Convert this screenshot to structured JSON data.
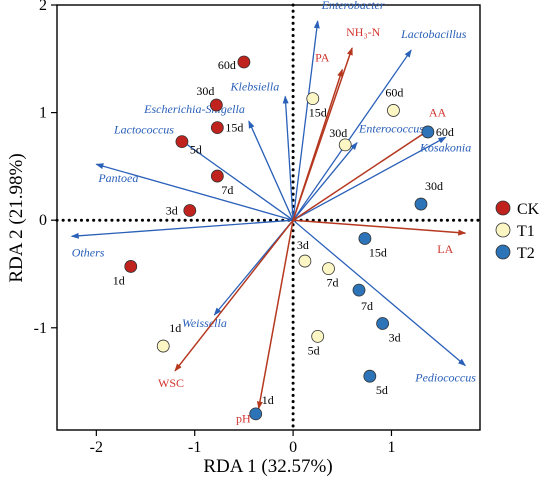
{
  "chart_data": {
    "type": "scatter",
    "title": "",
    "xlabel": "RDA 1 (32.57%)",
    "ylabel": "RDA 2 (21.98%)",
    "xlim": [
      -2.4,
      1.9
    ],
    "ylim": [
      -1.95,
      2.0
    ],
    "xticks": [
      -2,
      -1,
      0,
      1
    ],
    "yticks": [
      -1,
      0,
      1,
      2
    ],
    "colors": {
      "env_arrow": "#b5381f",
      "species_arrow": "#2a60b8",
      "CK": "#c0221e",
      "T1": "#fbf6c4",
      "T2": "#2c73b8",
      "zero_line": "#000000"
    },
    "legend": {
      "placement": "right",
      "entries": [
        {
          "name": "CK",
          "color": "#c0221e"
        },
        {
          "name": "T1",
          "color": "#fbf6c4"
        },
        {
          "name": "T2",
          "color": "#2c73b8"
        }
      ]
    },
    "env_vectors": [
      {
        "name": "NH₃-N",
        "x": 0.6,
        "y": 1.6
      },
      {
        "name": "PA",
        "x": 0.5,
        "y": 1.4
      },
      {
        "name": "AA",
        "x": 1.4,
        "y": 0.85
      },
      {
        "name": "LA",
        "x": 1.75,
        "y": -0.12
      },
      {
        "name": "WSC",
        "x": -1.2,
        "y": -1.4
      },
      {
        "name": "pH",
        "x": -0.35,
        "y": -1.75
      }
    ],
    "species_vectors": [
      {
        "name": "Enterobacter",
        "x": 0.25,
        "y": 1.85
      },
      {
        "name": "Lactobacillus",
        "x": 1.2,
        "y": 1.58
      },
      {
        "name": "Klebsiella",
        "x": -0.08,
        "y": 1.15
      },
      {
        "name": "Escherichia-Shigella",
        "x": -0.45,
        "y": 0.92
      },
      {
        "name": "Lactococcus",
        "x": -1.15,
        "y": 0.75
      },
      {
        "name": "Enterococcus",
        "x": 0.65,
        "y": 0.72
      },
      {
        "name": "Kosakonia",
        "x": 1.55,
        "y": 0.77
      },
      {
        "name": "Pantoea",
        "x": -2.0,
        "y": 0.52
      },
      {
        "name": "Others",
        "x": -2.25,
        "y": -0.15
      },
      {
        "name": "Weissella",
        "x": -0.8,
        "y": -0.88
      },
      {
        "name": "Pediococcus",
        "x": 1.75,
        "y": -1.35
      }
    ],
    "series": [
      {
        "name": "CK",
        "points": [
          {
            "label": "60d",
            "x": -0.5,
            "y": 1.47
          },
          {
            "label": "30d",
            "x": -0.78,
            "y": 1.07
          },
          {
            "label": "15d",
            "x": -0.77,
            "y": 0.86
          },
          {
            "label": "5d",
            "x": -1.13,
            "y": 0.73
          },
          {
            "label": "7d",
            "x": -0.77,
            "y": 0.41
          },
          {
            "label": "3d",
            "x": -1.05,
            "y": 0.09
          },
          {
            "label": "1d",
            "x": -1.65,
            "y": -0.43
          }
        ]
      },
      {
        "name": "T1",
        "points": [
          {
            "label": "15d",
            "x": 0.2,
            "y": 1.13
          },
          {
            "label": "60d",
            "x": 1.02,
            "y": 1.02
          },
          {
            "label": "30d",
            "x": 0.53,
            "y": 0.7
          },
          {
            "label": "3d",
            "x": 0.12,
            "y": -0.38
          },
          {
            "label": "7d",
            "x": 0.36,
            "y": -0.45
          },
          {
            "label": "5d",
            "x": 0.25,
            "y": -1.08
          },
          {
            "label": "1d",
            "x": -1.32,
            "y": -1.17
          }
        ]
      },
      {
        "name": "T2",
        "points": [
          {
            "label": "60d",
            "x": 1.37,
            "y": 0.82
          },
          {
            "label": "30d",
            "x": 1.3,
            "y": 0.15
          },
          {
            "label": "15d",
            "x": 0.73,
            "y": -0.17
          },
          {
            "label": "7d",
            "x": 0.67,
            "y": -0.65
          },
          {
            "label": "3d",
            "x": 0.91,
            "y": -0.96
          },
          {
            "label": "5d",
            "x": 0.78,
            "y": -1.45
          },
          {
            "label": "1d",
            "x": -0.38,
            "y": -1.8
          }
        ]
      }
    ]
  }
}
